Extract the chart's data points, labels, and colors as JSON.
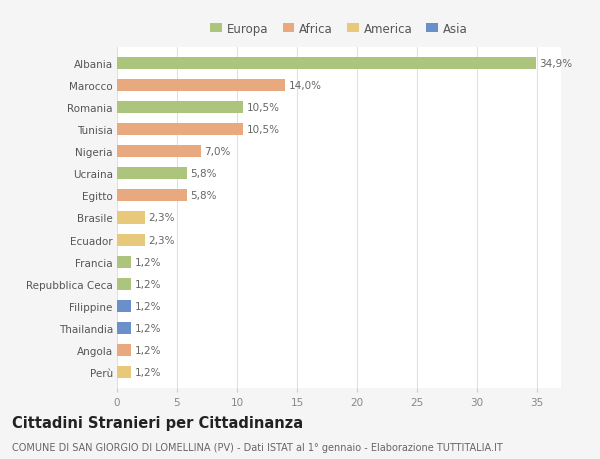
{
  "categories": [
    "Albania",
    "Marocco",
    "Romania",
    "Tunisia",
    "Nigeria",
    "Ucraina",
    "Egitto",
    "Brasile",
    "Ecuador",
    "Francia",
    "Repubblica Ceca",
    "Filippine",
    "Thailandia",
    "Angola",
    "Perù"
  ],
  "values": [
    34.9,
    14.0,
    10.5,
    10.5,
    7.0,
    5.8,
    5.8,
    2.3,
    2.3,
    1.2,
    1.2,
    1.2,
    1.2,
    1.2,
    1.2
  ],
  "labels": [
    "34,9%",
    "14,0%",
    "10,5%",
    "10,5%",
    "7,0%",
    "5,8%",
    "5,8%",
    "2,3%",
    "2,3%",
    "1,2%",
    "1,2%",
    "1,2%",
    "1,2%",
    "1,2%",
    "1,2%"
  ],
  "colors": [
    "#adc47c",
    "#e8a97e",
    "#adc47c",
    "#e8a97e",
    "#e8a97e",
    "#adc47c",
    "#e8a97e",
    "#e8c87a",
    "#e8c87a",
    "#adc47c",
    "#adc47c",
    "#6b8fc9",
    "#6b8fc9",
    "#e8a97e",
    "#e8c87a"
  ],
  "legend": {
    "Europa": "#adc47c",
    "Africa": "#e8a97e",
    "America": "#e8c87a",
    "Asia": "#6b8fc9"
  },
  "title": "Cittadini Stranieri per Cittadinanza",
  "subtitle": "COMUNE DI SAN GIORGIO DI LOMELLINA (PV) - Dati ISTAT al 1° gennaio - Elaborazione TUTTITALIA.IT",
  "xlim": [
    0,
    37
  ],
  "xticks": [
    0,
    5,
    10,
    15,
    20,
    25,
    30,
    35
  ],
  "bg_color": "#f5f5f5",
  "plot_bg_color": "#ffffff",
  "grid_color": "#e0e0e0",
  "bar_height": 0.55,
  "label_fontsize": 7.5,
  "tick_fontsize": 7.5,
  "title_fontsize": 10.5,
  "subtitle_fontsize": 7.0
}
